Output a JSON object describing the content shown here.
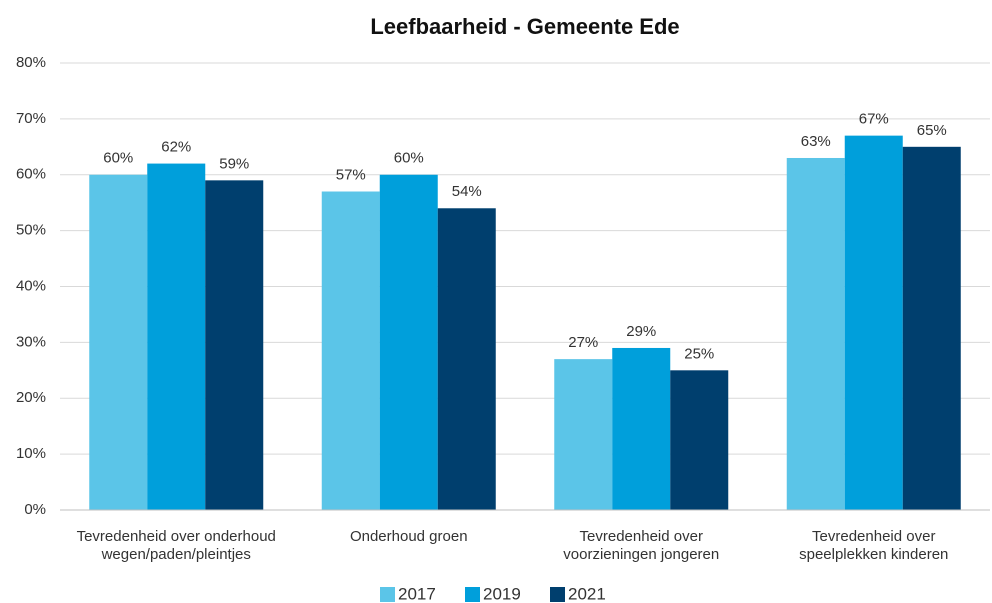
{
  "chart_data": {
    "type": "bar",
    "title": "Leefbaarheid - Gemeente Ede",
    "categories": [
      "Tevredenheid over onderhoud wegen/paden/pleintjes",
      "Onderhoud groen",
      "Tevredenheid over voorzieningen jongeren",
      "Tevredenheid over speelplekken kinderen"
    ],
    "series": [
      {
        "name": "2017",
        "color": "#5bc5e8",
        "values": [
          60,
          57,
          27,
          63
        ],
        "value_labels": [
          "60%",
          "57%",
          "27%",
          "63%"
        ]
      },
      {
        "name": "2019",
        "color": "#009fdb",
        "values": [
          62,
          60,
          29,
          67
        ],
        "value_labels": [
          "62%",
          "60%",
          "29%",
          "67%"
        ]
      },
      {
        "name": "2021",
        "color": "#003f6e",
        "values": [
          59,
          54,
          25,
          65
        ],
        "value_labels": [
          "59%",
          "54%",
          "25%",
          "65%"
        ]
      }
    ],
    "ylim": [
      0,
      80
    ],
    "yticks": [
      {
        "value": 0,
        "label": "0%"
      },
      {
        "value": 10,
        "label": "10%"
      },
      {
        "value": 20,
        "label": "20%"
      },
      {
        "value": 30,
        "label": "30%"
      },
      {
        "value": 40,
        "label": "40%"
      },
      {
        "value": 50,
        "label": "50%"
      },
      {
        "value": 60,
        "label": "60%"
      },
      {
        "value": 70,
        "label": "70%"
      },
      {
        "value": 80,
        "label": "80%"
      }
    ],
    "grid": true,
    "legend": "bottom"
  }
}
